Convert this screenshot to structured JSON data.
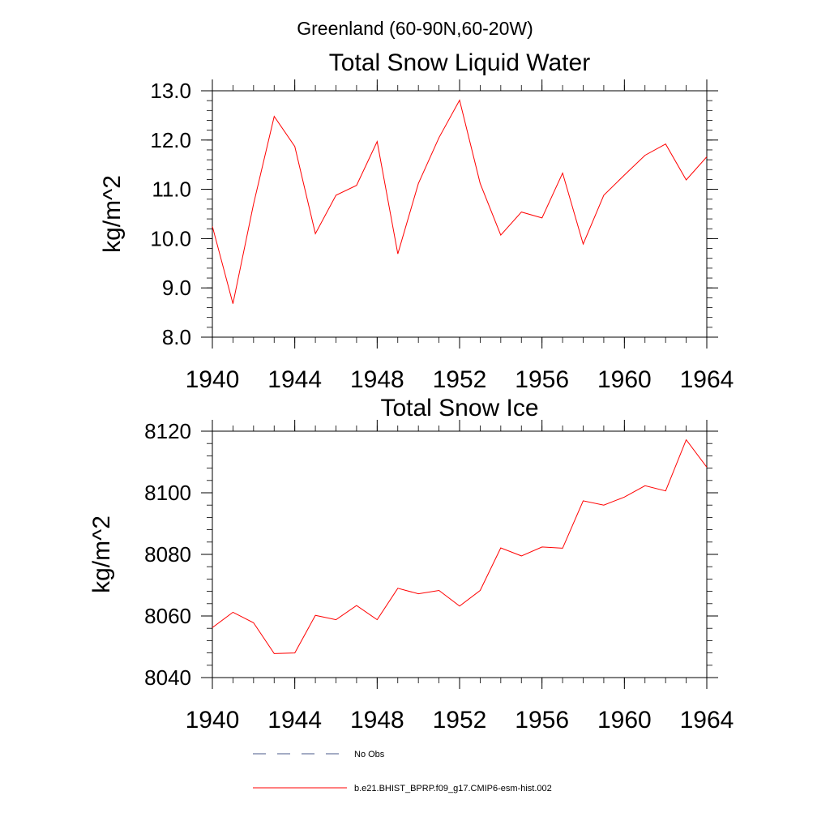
{
  "page_title": "Greenland (60-90N,60-20W)",
  "chart_data": [
    {
      "type": "line",
      "title": "Total Snow Liquid Water",
      "xlabel": "",
      "ylabel": "kg/m^2",
      "xlim": [
        1940,
        1964
      ],
      "ylim": [
        8.0,
        13.0
      ],
      "xticks": [
        1940,
        1944,
        1948,
        1952,
        1956,
        1960,
        1964
      ],
      "xtick_labels": [
        "1940",
        "1944",
        "1948",
        "1952",
        "1956",
        "1960",
        "1964"
      ],
      "yticks": [
        8.0,
        9.0,
        10.0,
        11.0,
        12.0,
        13.0
      ],
      "ytick_labels": [
        "8.0",
        "9.0",
        "10.0",
        "11.0",
        "12.0",
        "13.0"
      ],
      "grid": false,
      "series": [
        {
          "name": "b.e21.BHIST_BPRP.f09_g17.CMIP6-esm-hist.002",
          "color": "#ff0000",
          "x": [
            1940,
            1941,
            1942,
            1943,
            1944,
            1945,
            1946,
            1947,
            1948,
            1949,
            1950,
            1951,
            1952,
            1953,
            1954,
            1955,
            1956,
            1957,
            1958,
            1959,
            1960,
            1961,
            1962,
            1963,
            1964
          ],
          "y": [
            10.25,
            8.68,
            10.7,
            12.48,
            11.87,
            10.1,
            10.88,
            11.08,
            11.97,
            9.69,
            11.12,
            12.05,
            12.81,
            11.12,
            10.07,
            10.54,
            10.42,
            11.33,
            9.89,
            10.88,
            11.29,
            11.69,
            11.92,
            11.19,
            11.66
          ]
        }
      ]
    },
    {
      "type": "line",
      "title": "Total Snow Ice",
      "xlabel": "",
      "ylabel": "kg/m^2",
      "xlim": [
        1940,
        1964
      ],
      "ylim": [
        8040,
        8120
      ],
      "xticks": [
        1940,
        1944,
        1948,
        1952,
        1956,
        1960,
        1964
      ],
      "xtick_labels": [
        "1940",
        "1944",
        "1948",
        "1952",
        "1956",
        "1960",
        "1964"
      ],
      "yticks": [
        8040,
        8060,
        8080,
        8100,
        8120
      ],
      "ytick_labels": [
        "8040",
        "8060",
        "8080",
        "8100",
        "8120"
      ],
      "grid": false,
      "series": [
        {
          "name": "b.e21.BHIST_BPRP.f09_g17.CMIP6-esm-hist.002",
          "color": "#ff0000",
          "x": [
            1940,
            1941,
            1942,
            1943,
            1944,
            1945,
            1946,
            1947,
            1948,
            1949,
            1950,
            1951,
            1952,
            1953,
            1954,
            1955,
            1956,
            1957,
            1958,
            1959,
            1960,
            1961,
            1962,
            1963,
            1964
          ],
          "y": [
            8056.2,
            8061.2,
            8057.8,
            8047.8,
            8048.0,
            8060.2,
            8058.8,
            8063.4,
            8058.8,
            8069.0,
            8067.2,
            8068.3,
            8063.2,
            8068.3,
            8082.1,
            8079.5,
            8082.4,
            8082.0,
            8097.4,
            8096.0,
            8098.6,
            8102.3,
            8100.6,
            8117.2,
            8108.3
          ]
        }
      ]
    }
  ],
  "legend": {
    "placement": "bottom-center",
    "items": [
      {
        "label": "No Obs",
        "color": "#4a5a8a",
        "style": "dashed"
      },
      {
        "label": "b.e21.BHIST_BPRP.f09_g17.CMIP6-esm-hist.002",
        "color": "#ff0000",
        "style": "solid"
      }
    ]
  }
}
